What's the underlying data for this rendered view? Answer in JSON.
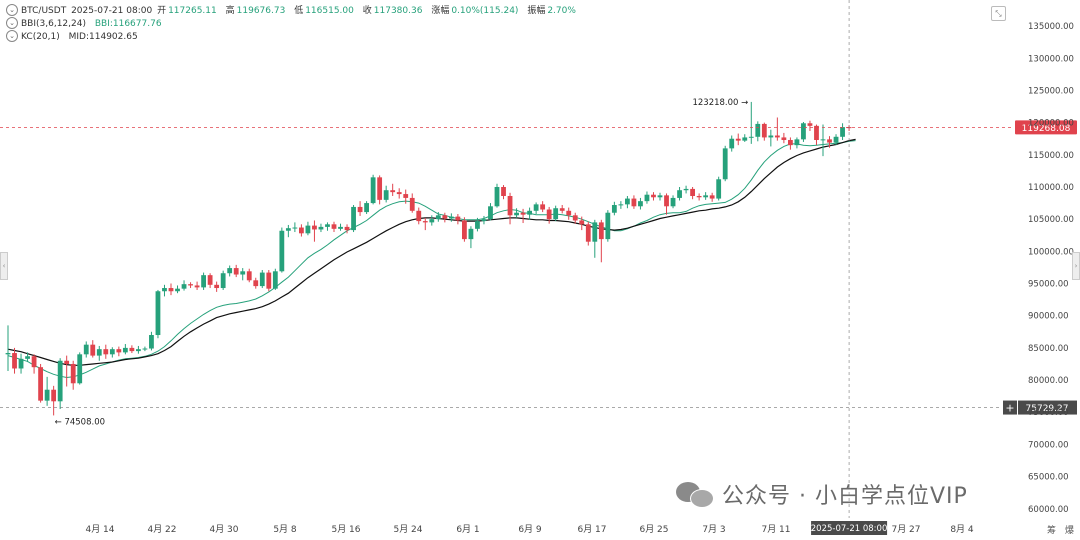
{
  "header": {
    "symbol": "BTC/USDT",
    "datetime": "2025-07-21 08:00",
    "open_label": "开",
    "open": "117265.11",
    "high_label": "高",
    "high": "119676.73",
    "low_label": "低",
    "low": "116515.00",
    "close_label": "收",
    "close": "117380.36",
    "change_label": "涨幅",
    "change": "0.10%(115.24)",
    "amplitude_label": "振幅",
    "amplitude": "2.70%"
  },
  "indicators": {
    "bbi_name": "BBI(3,6,12,24)",
    "bbi_value": "BBI:116677.76",
    "kc_name": "KC(20,1)",
    "kc_value": "MID:114902.65"
  },
  "annotations": {
    "high_marker": "123218.00 →",
    "low_marker": "← 74508.00"
  },
  "price_tags": {
    "current": "119268.08",
    "crosshair": "75729.27",
    "crosshair_plus": "+"
  },
  "crosshair_time": "2025-07-21 08:00",
  "bottom_right": {
    "a": "筹",
    "b": "爆"
  },
  "watermark": "公众号 · 小白学点位VIP",
  "colors": {
    "up": "#26a17b",
    "down": "#e0434d",
    "bbi": "#26a17b",
    "kc": "#111111",
    "current_tag": "#e0434d",
    "crosshair_tag": "#4a4a4a"
  },
  "chart_data": {
    "type": "candlestick",
    "y_ticks": [
      "135000.00",
      "130000.00",
      "125000.00",
      "120000.00",
      "115000.00",
      "110000.00",
      "105000.00",
      "100000.00",
      "95000.00",
      "90000.00",
      "85000.00",
      "80000.00",
      "75000.00",
      "70000.00",
      "65000.00",
      "60000.00"
    ],
    "x_ticks": [
      "4月 14",
      "4月 22",
      "4月 30",
      "5月 8",
      "5月 16",
      "5月 24",
      "6月 1",
      "6月 9",
      "6月 17",
      "6月 25",
      "7月 3",
      "7月 11",
      "7月 27",
      "8月 4"
    ],
    "ylim": [
      59500,
      137500
    ],
    "current_price": 119268.08,
    "crosshair_price": 75729.27,
    "high": 123218.0,
    "low": 74508.0,
    "series": [
      {
        "name": "BBI",
        "values": [
          83800,
          83500,
          83200,
          82900,
          82300,
          81800,
          81300,
          80900,
          80600,
          80400,
          80500,
          80800,
          81200,
          81700,
          82200,
          82500,
          82800,
          83100,
          83300,
          83400,
          83500,
          83700,
          84000,
          84500,
          85200,
          86100,
          87100,
          88000,
          88800,
          89500,
          90200,
          90800,
          91300,
          91600,
          91800,
          91900,
          92100,
          92300,
          92600,
          93100,
          93700,
          94400,
          95200,
          96000,
          97000,
          98000,
          99000,
          99700,
          100300,
          101000,
          101800,
          102500,
          103200,
          103700,
          104200,
          104800,
          105600,
          106400,
          107000,
          107400,
          107700,
          107800,
          107700,
          107500,
          107000,
          106400,
          105800,
          105600,
          105300,
          105100,
          104900,
          104900,
          104900,
          105100,
          105500,
          106000,
          106300,
          106500,
          106400,
          106000,
          105900,
          105700,
          105700,
          105700,
          105800,
          105700,
          105500,
          105300,
          105000,
          104600,
          104200,
          103800,
          103500,
          103200,
          103200,
          103500,
          103900,
          104400,
          104800,
          105300,
          105700,
          105900,
          106000,
          106000,
          106200,
          106700,
          107100,
          107300,
          107400,
          107500,
          107600,
          108100,
          108800,
          109800,
          111100,
          112600,
          113900,
          114900,
          115700,
          116300,
          116700,
          116700,
          116500,
          116400,
          116500,
          116600,
          116700,
          116800,
          116900,
          117100,
          117200
        ]
      },
      {
        "name": "KC MID",
        "values": [
          84800,
          84600,
          84400,
          84100,
          83800,
          83500,
          83200,
          82900,
          82600,
          82400,
          82300,
          82300,
          82400,
          82500,
          82600,
          82700,
          82800,
          83000,
          83200,
          83300,
          83400,
          83600,
          83800,
          84100,
          84600,
          85200,
          86000,
          86800,
          87500,
          88100,
          88700,
          89200,
          89700,
          90000,
          90300,
          90500,
          90700,
          90900,
          91100,
          91400,
          91800,
          92300,
          92900,
          93500,
          94300,
          95100,
          95900,
          96600,
          97300,
          98000,
          98700,
          99300,
          99900,
          100400,
          100900,
          101400,
          102000,
          102600,
          103200,
          103700,
          104200,
          104600,
          104900,
          105100,
          105200,
          105200,
          105100,
          105000,
          104900,
          104800,
          104700,
          104700,
          104700,
          104800,
          104900,
          105000,
          105100,
          105200,
          105200,
          105100,
          105000,
          104900,
          104900,
          104800,
          104800,
          104700,
          104600,
          104400,
          104200,
          103900,
          103700,
          103500,
          103400,
          103300,
          103400,
          103600,
          103900,
          104200,
          104500,
          104800,
          105100,
          105300,
          105500,
          105700,
          105900,
          106100,
          106300,
          106400,
          106600,
          106700,
          106900,
          107200,
          107700,
          108400,
          109300,
          110300,
          111300,
          112200,
          113100,
          113800,
          114400,
          114900,
          115300,
          115600,
          115900,
          116200,
          116400,
          116600,
          116900,
          117200,
          117400
        ]
      }
    ],
    "candles": [
      [
        84000,
        84200,
        88500,
        81400
      ],
      [
        84200,
        81800,
        85000,
        81000
      ],
      [
        81800,
        83300,
        84100,
        81000
      ],
      [
        83300,
        83700,
        84300,
        82800
      ],
      [
        83700,
        82000,
        84000,
        81000
      ],
      [
        82000,
        76800,
        82500,
        76500
      ],
      [
        76800,
        78500,
        80500,
        76000
      ],
      [
        78500,
        76700,
        79100,
        74508
      ],
      [
        76700,
        83000,
        83400,
        75500
      ],
      [
        83000,
        82500,
        83800,
        79000
      ],
      [
        82500,
        79500,
        83000,
        78500
      ],
      [
        79500,
        84000,
        84300,
        79300
      ],
      [
        84000,
        85500,
        86000,
        83500
      ],
      [
        85500,
        83800,
        86200,
        83500
      ],
      [
        83800,
        84800,
        85300,
        83000
      ],
      [
        84800,
        84000,
        85500,
        83300
      ],
      [
        84000,
        84800,
        85100,
        83500
      ],
      [
        84800,
        84300,
        85200,
        83700
      ],
      [
        84300,
        85000,
        85600,
        84000
      ],
      [
        85000,
        84500,
        85400,
        84200
      ],
      [
        84500,
        84800,
        85300,
        84100
      ],
      [
        84800,
        84900,
        85200,
        84500
      ],
      [
        84900,
        87000,
        87500,
        84600
      ],
      [
        87000,
        93800,
        94000,
        86500
      ],
      [
        93800,
        94300,
        94800,
        93000
      ],
      [
        94300,
        93800,
        95000,
        93200
      ],
      [
        93800,
        94200,
        94700,
        93500
      ],
      [
        94200,
        94900,
        95500,
        93900
      ],
      [
        94900,
        94700,
        95200,
        94300
      ],
      [
        94700,
        94400,
        95300,
        94000
      ],
      [
        94400,
        96300,
        96700,
        94000
      ],
      [
        96300,
        94800,
        96600,
        94300
      ],
      [
        94800,
        94300,
        95300,
        93700
      ],
      [
        94300,
        96600,
        97000,
        94000
      ],
      [
        96600,
        97400,
        97800,
        96100
      ],
      [
        97400,
        96400,
        97900,
        96000
      ],
      [
        96400,
        96900,
        97400,
        95500
      ],
      [
        96900,
        95500,
        97300,
        95200
      ],
      [
        95500,
        94600,
        95900,
        94200
      ],
      [
        94600,
        96700,
        97100,
        94300
      ],
      [
        96700,
        94200,
        97100,
        93800
      ],
      [
        94200,
        96900,
        97300,
        94000
      ],
      [
        96900,
        103200,
        103700,
        96700
      ],
      [
        103200,
        103600,
        104100,
        102200
      ],
      [
        103600,
        103700,
        104500,
        103000
      ],
      [
        103700,
        102800,
        104200,
        102300
      ],
      [
        102800,
        104000,
        104600,
        102500
      ],
      [
        104000,
        103400,
        104800,
        101500
      ],
      [
        103400,
        103800,
        104300,
        103000
      ],
      [
        103800,
        104200,
        104500,
        103200
      ],
      [
        104200,
        103500,
        104600,
        103000
      ],
      [
        103500,
        103800,
        104300,
        103200
      ],
      [
        103800,
        103300,
        104200,
        102800
      ],
      [
        103300,
        106900,
        107200,
        103000
      ],
      [
        106900,
        106100,
        107800,
        105500
      ],
      [
        106100,
        107500,
        107800,
        105800
      ],
      [
        107500,
        111500,
        111900,
        107300
      ],
      [
        111500,
        108000,
        111800,
        107300
      ],
      [
        108000,
        109500,
        110200,
        107600
      ],
      [
        109500,
        109200,
        110500,
        108600
      ],
      [
        109200,
        108900,
        109800,
        108200
      ],
      [
        108900,
        108300,
        109600,
        107400
      ],
      [
        108300,
        106300,
        109000,
        106000
      ],
      [
        106300,
        104700,
        106800,
        104200
      ],
      [
        104700,
        104500,
        105200,
        103300
      ],
      [
        104500,
        105000,
        105600,
        104000
      ],
      [
        105000,
        105600,
        106100,
        104600
      ],
      [
        105600,
        105100,
        106000,
        104500
      ],
      [
        105100,
        105400,
        105900,
        104600
      ],
      [
        105400,
        104800,
        105800,
        104200
      ],
      [
        104800,
        101900,
        105300,
        101500
      ],
      [
        101900,
        103500,
        103900,
        100500
      ],
      [
        103500,
        104700,
        105200,
        103100
      ],
      [
        104700,
        105000,
        105500,
        104200
      ],
      [
        105000,
        107000,
        107500,
        104800
      ],
      [
        107000,
        110000,
        110500,
        106800
      ],
      [
        110000,
        108600,
        110300,
        108100
      ],
      [
        108600,
        105600,
        109100,
        104200
      ],
      [
        105600,
        106000,
        106700,
        105200
      ],
      [
        106000,
        105700,
        106600,
        104400
      ],
      [
        105700,
        106300,
        106800,
        104900
      ],
      [
        106300,
        107300,
        107600,
        105800
      ],
      [
        107300,
        106500,
        107800,
        106100
      ],
      [
        106500,
        105000,
        106900,
        104300
      ],
      [
        105000,
        106700,
        107100,
        104700
      ],
      [
        106700,
        106300,
        107200,
        105900
      ],
      [
        106300,
        105600,
        106800,
        104900
      ],
      [
        105600,
        104800,
        106000,
        104300
      ],
      [
        104800,
        104200,
        105400,
        103300
      ],
      [
        104200,
        101500,
        104600,
        100900
      ],
      [
        101500,
        104500,
        104900,
        99000
      ],
      [
        104500,
        101900,
        104900,
        98300
      ],
      [
        101900,
        106000,
        106400,
        101500
      ],
      [
        106000,
        107200,
        107700,
        105600
      ],
      [
        107200,
        107300,
        107800,
        106600
      ],
      [
        107300,
        108200,
        108600,
        106700
      ],
      [
        108200,
        107000,
        108700,
        106600
      ],
      [
        107000,
        107800,
        108300,
        106500
      ],
      [
        107800,
        108800,
        109300,
        107400
      ],
      [
        108800,
        108400,
        109200,
        107900
      ],
      [
        108400,
        108700,
        109100,
        107900
      ],
      [
        108700,
        107000,
        109000,
        105700
      ],
      [
        107000,
        108300,
        108700,
        106700
      ],
      [
        108300,
        109500,
        110000,
        107900
      ],
      [
        109500,
        109700,
        110200,
        109000
      ],
      [
        109700,
        108600,
        110000,
        108100
      ],
      [
        108600,
        108400,
        109000,
        107900
      ],
      [
        108400,
        108700,
        109200,
        108000
      ],
      [
        108700,
        108200,
        109100,
        107700
      ],
      [
        108200,
        111200,
        111600,
        107900
      ],
      [
        111200,
        116000,
        116400,
        110900
      ],
      [
        116000,
        117500,
        118000,
        115500
      ],
      [
        117500,
        117200,
        118300,
        116500
      ],
      [
        117200,
        117700,
        118200,
        117000
      ],
      [
        117700,
        117800,
        123218,
        116700
      ],
      [
        117800,
        119800,
        120200,
        117100
      ],
      [
        119800,
        117700,
        120000,
        117200
      ],
      [
        117700,
        118000,
        118900,
        116300
      ],
      [
        118000,
        117700,
        120800,
        117200
      ],
      [
        117700,
        117300,
        118400,
        116800
      ],
      [
        117300,
        116500,
        117700,
        115800
      ],
      [
        116500,
        117400,
        117700,
        116000
      ],
      [
        117400,
        119900,
        120100,
        117000
      ],
      [
        119900,
        119500,
        120300,
        118700
      ],
      [
        119500,
        117300,
        119700,
        116515
      ],
      [
        117300,
        117400,
        119700,
        114800
      ],
      [
        117400,
        116900,
        117900,
        116100
      ],
      [
        116900,
        117800,
        118200,
        116500
      ],
      [
        117800,
        119300,
        119900,
        117300
      ],
      [
        119300,
        119268,
        119600,
        118700
      ]
    ]
  }
}
